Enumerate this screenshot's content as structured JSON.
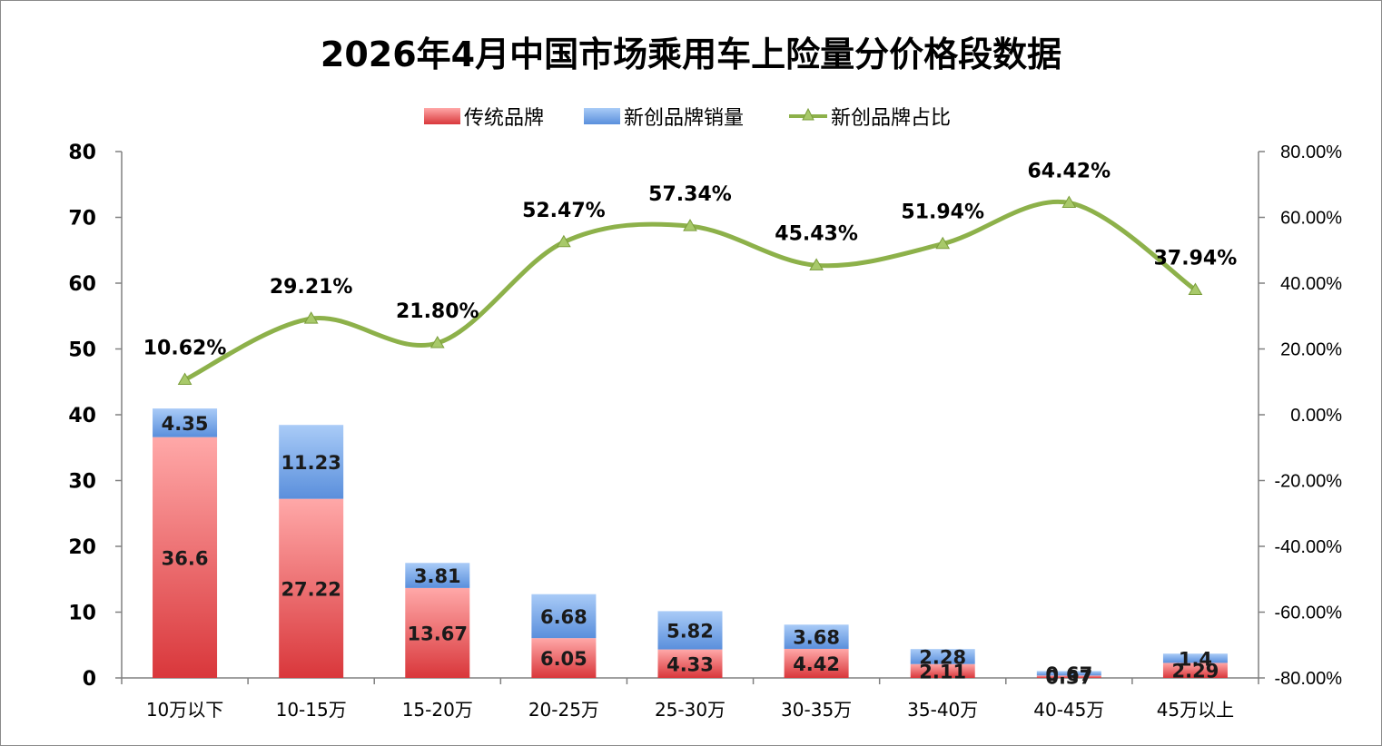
{
  "chart_data": {
    "type": "bar",
    "stacked": true,
    "title": "2026年4月中国市场乘用车上险量分价格段数据",
    "categories": [
      "10万以下",
      "10-15万",
      "15-20万",
      "20-25万",
      "25-30万",
      "30-35万",
      "35-40万",
      "40-45万",
      "45万以上"
    ],
    "series": [
      {
        "name": "传统品牌",
        "kind": "bar",
        "axis": "left",
        "color": "#e8474b",
        "values": [
          36.6,
          27.22,
          13.67,
          6.05,
          4.33,
          4.42,
          2.11,
          0.37,
          2.29
        ],
        "labels": [
          "36.6",
          "27.22",
          "13.67",
          "6.05",
          "4.33",
          "4.42",
          "2.11",
          "0.37",
          "2.29"
        ]
      },
      {
        "name": "新创品牌销量",
        "kind": "bar",
        "axis": "left",
        "color": "#6ea3e8",
        "values": [
          4.35,
          11.23,
          3.81,
          6.68,
          5.82,
          3.68,
          2.28,
          0.67,
          1.4
        ],
        "labels": [
          "4.35",
          "11.23",
          "3.81",
          "6.68",
          "5.82",
          "3.68",
          "2.28",
          "0.67",
          "1.4"
        ]
      },
      {
        "name": "新创品牌占比",
        "kind": "line",
        "axis": "right",
        "color": "#8db14a",
        "values": [
          10.62,
          29.21,
          21.8,
          52.47,
          57.34,
          45.43,
          51.94,
          64.42,
          37.94
        ],
        "labels": [
          "10.62%",
          "29.21%",
          "21.80%",
          "52.47%",
          "57.34%",
          "45.43%",
          "51.94%",
          "64.42%",
          "37.94%"
        ]
      }
    ],
    "y_left": {
      "min": 0,
      "max": 80,
      "ticks": [
        "80",
        "70",
        "60",
        "50",
        "40",
        "30",
        "20",
        "10",
        "0"
      ]
    },
    "y_right": {
      "min": -80,
      "max": 80,
      "ticks": [
        "80.00%",
        "60.00%",
        "40.00%",
        "20.00%",
        "0.00%",
        "-20.00%",
        "-40.00%",
        "-60.00%",
        "-80.00%"
      ]
    },
    "legend_position": "top",
    "grid": false
  }
}
